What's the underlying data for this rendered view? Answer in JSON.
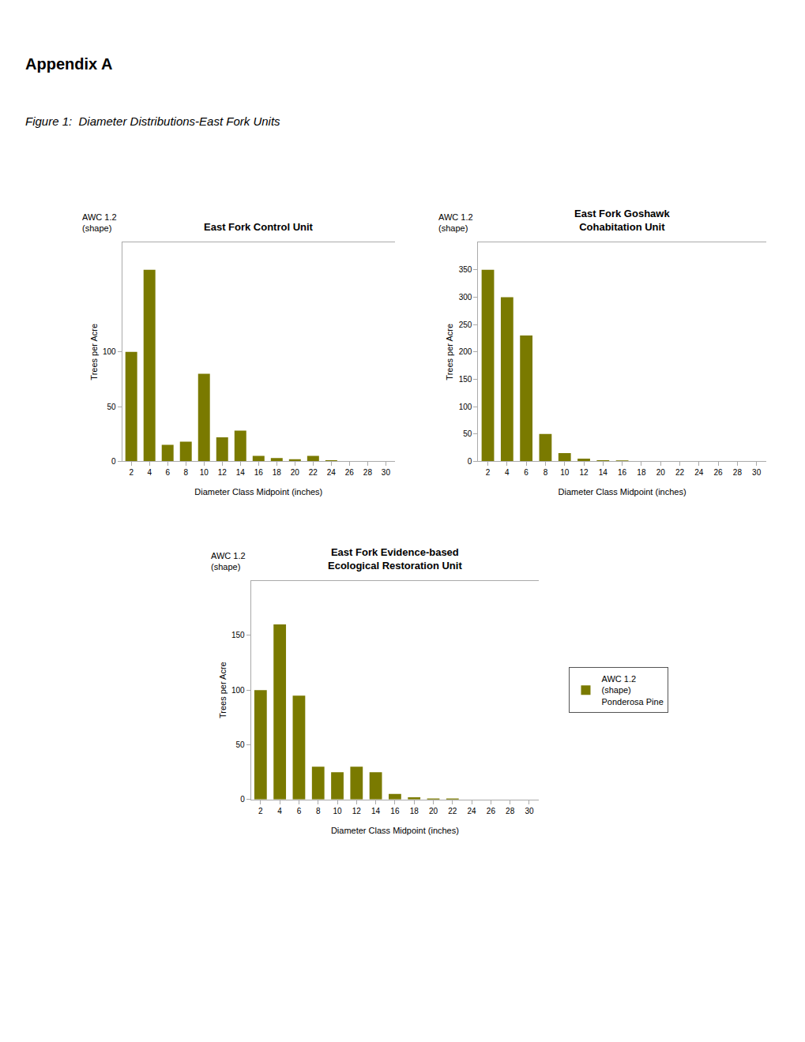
{
  "title": "Appendix A",
  "subtitle": "Figure 1:  Diameter Distributions-East Fork Units",
  "chart_data": [
    {
      "type": "bar",
      "title": "East Fork Control Unit",
      "xlabel": "Diameter Class Midpoint (inches)",
      "ylabel": "Trees per Acre",
      "annotations": [
        "AWC 1.2\n(shape)"
      ],
      "categories": [
        2,
        4,
        6,
        8,
        10,
        12,
        14,
        16,
        18,
        20,
        22,
        24,
        26,
        28,
        30
      ],
      "values": [
        100,
        175,
        15,
        18,
        80,
        22,
        28,
        5,
        3,
        2,
        5,
        1,
        0,
        0,
        0
      ],
      "color": "#7a7a00",
      "ylim": [
        0,
        200
      ],
      "yticks": [
        0,
        50,
        100
      ],
      "grid": false
    },
    {
      "type": "bar",
      "title": "East Fork Goshawk\nCohabitation Unit",
      "xlabel": "Diameter Class Midpoint (inches)",
      "ylabel": "Trees per Acre",
      "annotations": [
        "AWC 1.2\n(shape)"
      ],
      "categories": [
        2,
        4,
        6,
        8,
        10,
        12,
        14,
        16,
        18,
        20,
        22,
        24,
        26,
        28,
        30
      ],
      "values": [
        350,
        300,
        230,
        50,
        15,
        5,
        2,
        1,
        0,
        0,
        0,
        0,
        0,
        0,
        0
      ],
      "color": "#7a7a00",
      "ylim": [
        0,
        400
      ],
      "yticks": [
        0,
        50,
        100,
        150,
        200,
        250,
        300,
        350
      ],
      "grid": false
    },
    {
      "type": "bar",
      "title": "East Fork Evidence-based\nEcological Restoration Unit",
      "xlabel": "Diameter Class Midpoint (inches)",
      "ylabel": "Trees per Acre",
      "annotations": [
        "AWC 1.2\n(shape)"
      ],
      "categories": [
        2,
        4,
        6,
        8,
        10,
        12,
        14,
        16,
        18,
        20,
        22,
        24,
        26,
        28,
        30
      ],
      "series": [
        {
          "name": "AWC 1.2\n(shape)\nPonderosa Pine",
          "color": "#7a7a00",
          "values": [
            100,
            160,
            95,
            30,
            25,
            30,
            25,
            5,
            2,
            1,
            1,
            0,
            0,
            0,
            0
          ]
        }
      ],
      "ylim": [
        0,
        200
      ],
      "yticks": [
        0,
        50,
        100,
        150
      ],
      "grid": false,
      "legend": "right"
    }
  ]
}
